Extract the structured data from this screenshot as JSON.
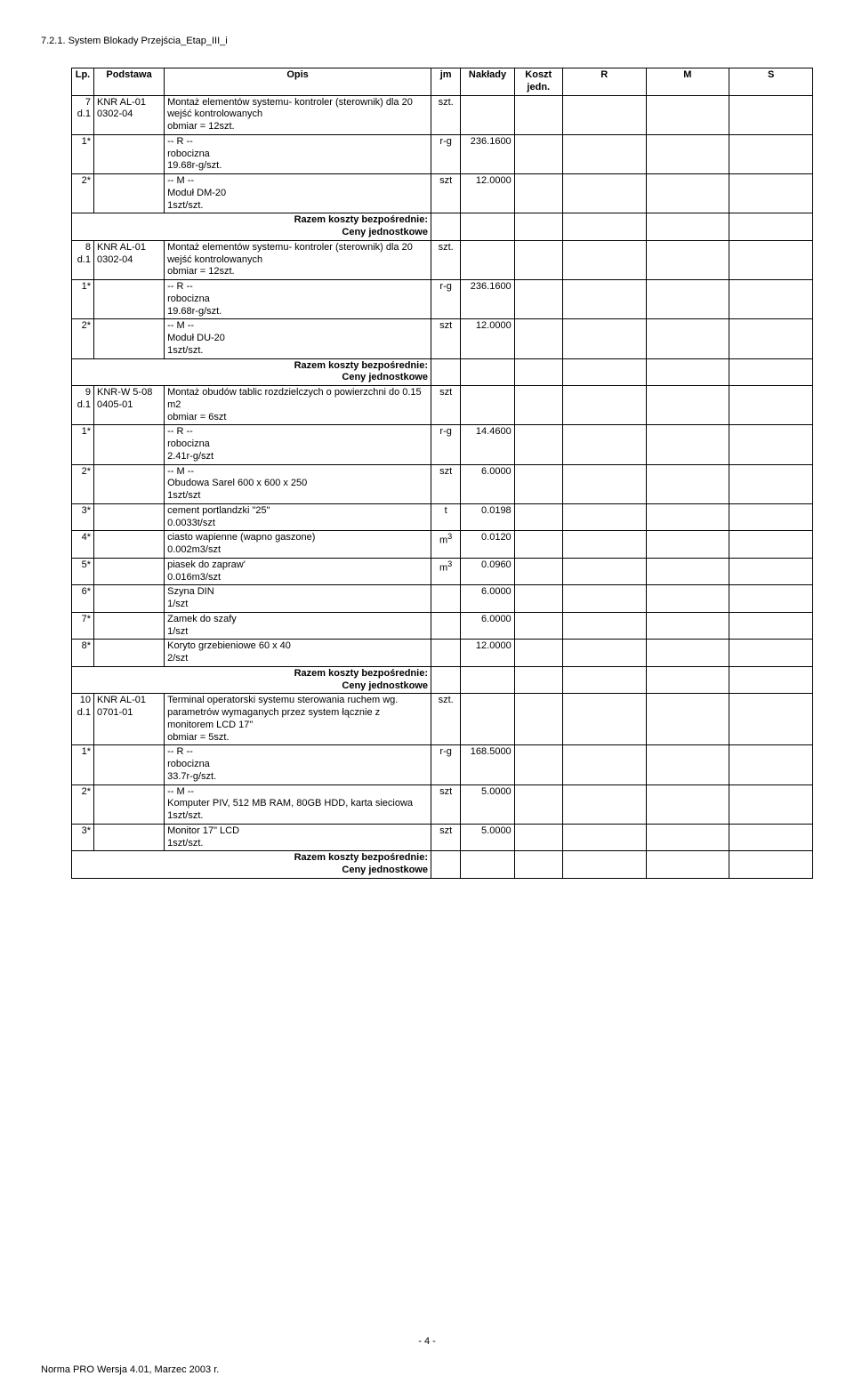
{
  "doc": {
    "title": "7.2.1. System Blokady Przejścia_Etap_III_i",
    "page_footer": "- 4 -",
    "version_footer": "Norma PRO Wersja 4.01, Marzec 2003 r."
  },
  "headers": {
    "lp": "Lp.",
    "podstawa": "Podstawa",
    "opis": "Opis",
    "jm": "jm",
    "naklady": "Nakłady",
    "koszt": "Koszt jedn.",
    "r": "R",
    "m": "M",
    "s": "S"
  },
  "labels": {
    "razem": "Razem koszty bezpośrednie:",
    "ceny": "Ceny jednostkowe",
    "r_marker": "-- R --",
    "m_marker": "-- M --"
  },
  "rows": {
    "r7": {
      "lp": "7 d.1",
      "pod": "KNR AL-01 0302-04",
      "opis": "Montaż elementów systemu- kontroler (sterownik) dla 20 wejść kontrolowanych\nobmiar = 12szt.",
      "jm": "szt."
    },
    "r7_1": {
      "lp": "1*",
      "opis": "robocizna\n19.68r-g/szt.",
      "jm": "r-g",
      "nak": "236.1600"
    },
    "r7_2": {
      "lp": "2*",
      "opis": "Moduł DM-20\n1szt/szt.",
      "jm": "szt",
      "nak": "12.0000"
    },
    "r8": {
      "lp": "8 d.1",
      "pod": "KNR AL-01 0302-04",
      "opis": "Montaż elementów systemu- kontroler (sterownik) dla 20 wejść kontrolowanych\nobmiar = 12szt.",
      "jm": "szt."
    },
    "r8_1": {
      "lp": "1*",
      "opis": "robocizna\n19.68r-g/szt.",
      "jm": "r-g",
      "nak": "236.1600"
    },
    "r8_2": {
      "lp": "2*",
      "opis": "Moduł DU-20\n1szt/szt.",
      "jm": "szt",
      "nak": "12.0000"
    },
    "r9": {
      "lp": "9 d.1",
      "pod": "KNR-W 5-08 0405-01",
      "opis": "Montaż obudów tablic rozdzielczych o powierzchni do 0.15 m2\nobmiar = 6szt",
      "jm": "szt"
    },
    "r9_1": {
      "lp": "1*",
      "opis": "robocizna\n2.41r-g/szt",
      "jm": "r-g",
      "nak": "14.4600"
    },
    "r9_2": {
      "lp": "2*",
      "opis": "Obudowa Sarel 600 x 600 x 250\n1szt/szt",
      "jm": "szt",
      "nak": "6.0000"
    },
    "r9_3": {
      "lp": "3*",
      "opis": "cement portlandzki \"25\"\n0.0033t/szt",
      "jm": "t",
      "nak": "0.0198"
    },
    "r9_4": {
      "lp": "4*",
      "opis": "ciasto wapienne (wapno gaszone)\n0.002m3/szt",
      "jm": "m3",
      "nak": "0.0120"
    },
    "r9_5": {
      "lp": "5*",
      "opis": "piasek do zapraw'\n0.016m3/szt",
      "jm": "m3",
      "nak": "0.0960"
    },
    "r9_6": {
      "lp": "6*",
      "opis": "Szyna DIN\n1/szt",
      "jm": "",
      "nak": "6.0000"
    },
    "r9_7": {
      "lp": "7*",
      "opis": "Zamek do szafy\n1/szt",
      "jm": "",
      "nak": "6.0000"
    },
    "r9_8": {
      "lp": "8*",
      "opis": "Koryto grzebieniowe 60 x 40\n2/szt",
      "jm": "",
      "nak": "12.0000"
    },
    "r10": {
      "lp": "10 d.1",
      "pod": "KNR AL-01 0701-01",
      "opis": "Terminal operatorski systemu sterowania ruchem wg. parametrów wymaganych przez system łącznie z monitorem LCD 17\"\nobmiar = 5szt.",
      "jm": "szt."
    },
    "r10_1": {
      "lp": "1*",
      "opis": "robocizna\n33.7r-g/szt.",
      "jm": "r-g",
      "nak": "168.5000"
    },
    "r10_2": {
      "lp": "2*",
      "opis": "Komputer PIV, 512 MB RAM, 80GB HDD, karta sieciowa\n1szt/szt.",
      "jm": "szt",
      "nak": "5.0000"
    },
    "r10_3": {
      "lp": "3*",
      "opis": "Monitor 17\" LCD\n1szt/szt.",
      "jm": "szt",
      "nak": "5.0000"
    }
  }
}
